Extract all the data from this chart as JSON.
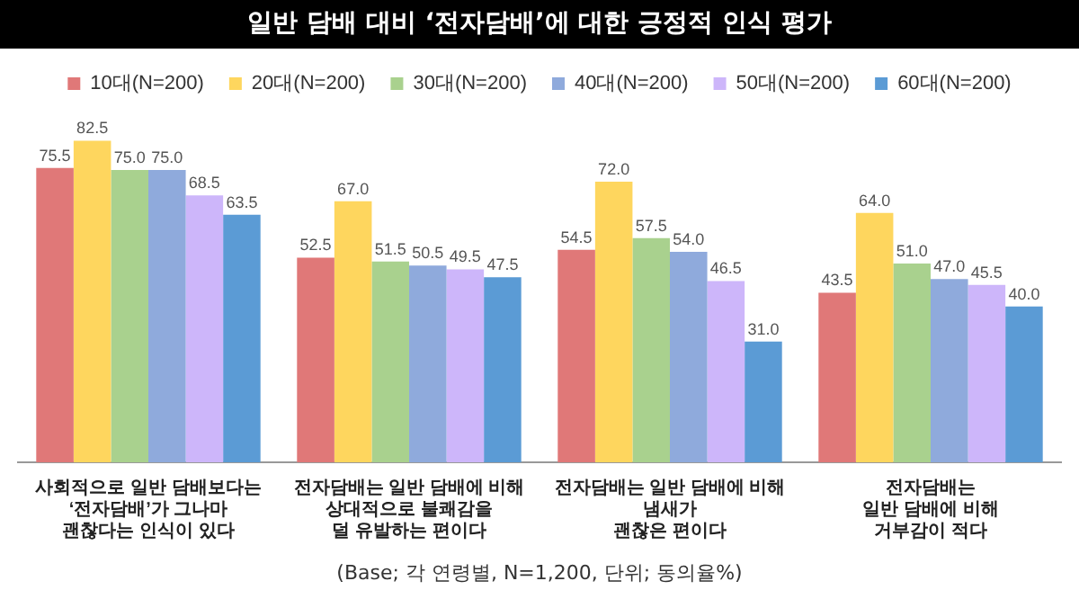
{
  "chart_data": {
    "type": "bar",
    "title": "일반 담배 대비 ‘전자담배’에 대한 긍정적 인식 평가",
    "categories": [
      "사회적으로 일반 담배보다는\n‘전자담배’가 그나마\n괜찮다는 인식이 있다",
      "전자담배는 일반 담배에 비해\n상대적으로 불쾌감을\n덜 유발하는 편이다",
      "전자담배는 일반 담배에 비해\n냄새가\n괜찮은 편이다",
      "전자담배는\n일반 담배에 비해\n거부감이 적다"
    ],
    "series": [
      {
        "name": "10대(N=200)",
        "color": "#e07878",
        "values": [
          75.5,
          52.5,
          54.5,
          43.5
        ],
        "value_labels": [
          "75.5",
          "52.5",
          "54.5",
          "43.5"
        ]
      },
      {
        "name": "20대(N=200)",
        "color": "#fed65e",
        "values": [
          82.5,
          67.0,
          72.0,
          64.0
        ],
        "value_labels": [
          "82.5",
          "67.0",
          "72.0",
          "64.0"
        ]
      },
      {
        "name": "30대(N=200)",
        "color": "#a9d18e",
        "values": [
          75.0,
          51.5,
          57.5,
          51.0
        ],
        "value_labels": [
          "75.0",
          "51.5",
          "57.5",
          "51.0"
        ]
      },
      {
        "name": "40대(N=200)",
        "color": "#8faadc",
        "values": [
          75.0,
          50.5,
          54.0,
          47.0
        ],
        "value_labels": [
          "75.0",
          "50.5",
          "54.0",
          "47.0"
        ]
      },
      {
        "name": "50대(N=200)",
        "color": "#cdb6fa",
        "values": [
          68.5,
          49.5,
          46.5,
          45.5
        ],
        "value_labels": [
          "68.5",
          "49.5",
          "46.5",
          "45.5"
        ]
      },
      {
        "name": "60대(N=200)",
        "color": "#5b9bd5",
        "values": [
          63.5,
          47.5,
          31.0,
          40.0
        ],
        "value_labels": [
          "63.5",
          "47.5",
          "31.0",
          "40.0"
        ]
      }
    ],
    "legend": "top",
    "grid": false,
    "annotations": [
      "(Base; 각 연령별, N=1,200, 단위; 동의율%)"
    ]
  }
}
